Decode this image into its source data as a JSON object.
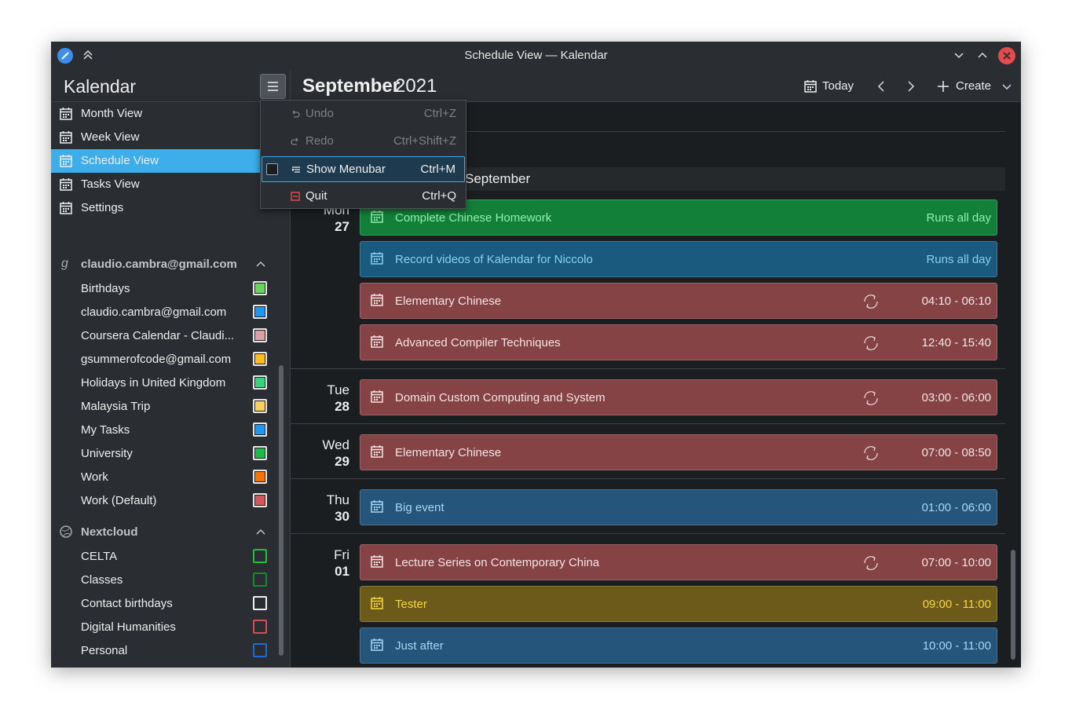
{
  "window": {
    "title": "Schedule View — Kalendar"
  },
  "sidebar": {
    "title": "Kalendar",
    "views": [
      {
        "label": "Month View",
        "selected": false
      },
      {
        "label": "Week View",
        "selected": false
      },
      {
        "label": "Schedule View",
        "selected": true
      },
      {
        "label": "Tasks View",
        "selected": false
      },
      {
        "label": "Settings",
        "selected": false
      }
    ],
    "accounts": [
      {
        "name": "claudio.cambra@gmail.com",
        "calendars": [
          {
            "name": "Birthdays",
            "color": "#6ad35c",
            "filled": true
          },
          {
            "name": "claudio.cambra@gmail.com",
            "color": "#1d99f3",
            "filled": true
          },
          {
            "name": "Coursera Calendar - Claudi...",
            "color": "#d9a0aa",
            "filled": true
          },
          {
            "name": "gsummerofcode@gmail.com",
            "color": "#fdbc1b",
            "filled": true
          },
          {
            "name": "Holidays in United Kingdom",
            "color": "#3ad080",
            "filled": true
          },
          {
            "name": "Malaysia Trip",
            "color": "#f8d060",
            "filled": true
          },
          {
            "name": "My Tasks",
            "color": "#1d99f3",
            "filled": true
          },
          {
            "name": "University",
            "color": "#1fb84a",
            "filled": true
          },
          {
            "name": "Work",
            "color": "#f67400",
            "filled": true
          },
          {
            "name": "Work (Default)",
            "color": "#d05a5a",
            "filled": true
          }
        ]
      },
      {
        "name": "Nextcloud",
        "calendars": [
          {
            "name": "CELTA",
            "color": "#1fc040",
            "filled": false
          },
          {
            "name": "Classes",
            "color": "#168a2a",
            "filled": false
          },
          {
            "name": "Contact birthdays",
            "color": "#eeeeee",
            "filled": false
          },
          {
            "name": "Digital Humanities",
            "color": "#d05050",
            "filled": false
          },
          {
            "name": "Personal",
            "color": "#1d6ad0",
            "filled": false
          }
        ]
      }
    ]
  },
  "header": {
    "month": "September",
    "year": "2021",
    "today": "Today",
    "create": "Create"
  },
  "menu": {
    "items": [
      {
        "label": "Undo",
        "shortcut": "Ctrl+Z",
        "enabled": false,
        "highlighted": false
      },
      {
        "label": "Redo",
        "shortcut": "Ctrl+Shift+Z",
        "enabled": false,
        "highlighted": false
      },
      {
        "label": "Show Menubar",
        "shortcut": "Ctrl+M",
        "enabled": true,
        "highlighted": true
      },
      {
        "label": "Quit",
        "shortcut": "Ctrl+Q",
        "enabled": true,
        "highlighted": false
      }
    ]
  },
  "schedule": {
    "week_label": "September",
    "days": [
      {
        "weekday": "Mon",
        "date": "27",
        "events": [
          {
            "title": "Complete Chinese Homework",
            "time": "Runs all day",
            "color": "#13803a",
            "text_color": "#8ff0a8",
            "recurring": false
          },
          {
            "title": "Record videos of Kalendar for Niccolo",
            "time": "Runs all day",
            "color": "#1a5a7e",
            "text_color": "#86d0f4",
            "recurring": false
          },
          {
            "title": "Elementary Chinese",
            "time": "04:10 - 06:10",
            "color": "#854345",
            "text_color": "#f4e4e4",
            "recurring": true
          },
          {
            "title": "Advanced Compiler Techniques",
            "time": "12:40 - 15:40",
            "color": "#854345",
            "text_color": "#f4e4e4",
            "recurring": true
          }
        ]
      },
      {
        "weekday": "Tue",
        "date": "28",
        "events": [
          {
            "title": "Domain Custom Computing and System",
            "time": "03:00 - 06:00",
            "color": "#854345",
            "text_color": "#f4e4e4",
            "recurring": true
          }
        ]
      },
      {
        "weekday": "Wed",
        "date": "29",
        "events": [
          {
            "title": "Elementary Chinese",
            "time": "07:00 - 08:50",
            "color": "#854345",
            "text_color": "#f4e4e4",
            "recurring": true
          }
        ]
      },
      {
        "weekday": "Thu",
        "date": "30",
        "events": [
          {
            "title": "Big event",
            "time": "01:00 - 06:00",
            "color": "#25557a",
            "text_color": "#a6d6f6",
            "recurring": false
          }
        ]
      },
      {
        "weekday": "Fri",
        "date": "01",
        "events": [
          {
            "title": "Lecture Series on Contemporary China",
            "time": "07:00 - 10:00",
            "color": "#854345",
            "text_color": "#f4e4e4",
            "recurring": true
          },
          {
            "title": "Tester",
            "time": "09:00 - 11:00",
            "color": "#6c5a1a",
            "text_color": "#f6d640",
            "recurring": false
          },
          {
            "title": "Just after",
            "time": "10:00 - 11:00",
            "color": "#25557a",
            "text_color": "#a6d6f6",
            "recurring": false
          }
        ]
      }
    ]
  }
}
